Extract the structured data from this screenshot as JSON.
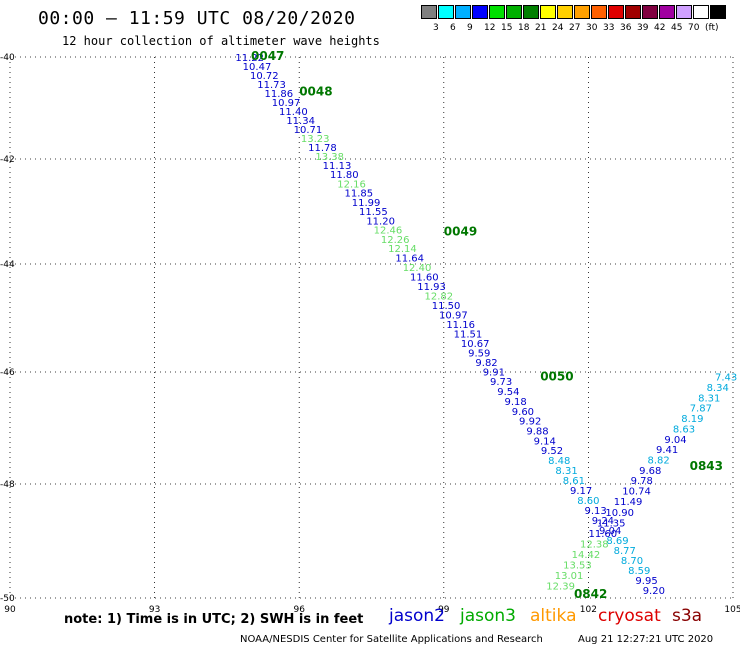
{
  "header": {
    "title": "00:00 – 11:59 UTC 08/20/2020",
    "subtitle": "12 hour collection of altimeter wave heights"
  },
  "colorbar": {
    "colors": [
      "#808080",
      "#00ffff",
      "#00b0ff",
      "#0000ff",
      "#00e000",
      "#00b000",
      "#008000",
      "#ffff00",
      "#ffd000",
      "#ffa000",
      "#ff6000",
      "#e00000",
      "#a00000",
      "#800040",
      "#a000a0",
      "#d0a0ff",
      "#ffffff",
      "#000000"
    ],
    "labels": [
      "3",
      "6",
      "9",
      "12",
      "15",
      "18",
      "21",
      "24",
      "27",
      "30",
      "33",
      "36",
      "39",
      "42",
      "45",
      "70",
      "(ft)"
    ]
  },
  "map": {
    "lon_ticks": [
      "90",
      "93",
      "96",
      "99",
      "102",
      "105"
    ],
    "lat_ticks": [
      "-40",
      "-42",
      "-44",
      "-46",
      "-48",
      "-50"
    ],
    "grid": "dotted"
  },
  "chart_data": {
    "type": "scatter",
    "xlim": [
      90,
      105
    ],
    "ylim": [
      -50,
      -40
    ],
    "tracks": [
      {
        "sat": "jason2",
        "pass_labels": [
          {
            "text": "0047",
            "lon": 95.0,
            "lat": -39.98
          },
          {
            "text": "0048",
            "lon": 96.0,
            "lat": -40.7
          },
          {
            "text": "0049",
            "lon": 99.0,
            "lat": -43.4
          },
          {
            "text": "0050",
            "lon": 101.0,
            "lat": -46.1
          }
        ],
        "points": [
          {
            "v": "11.22",
            "c": "#0000cc"
          },
          {
            "v": "10.47",
            "c": "#0000cc"
          },
          {
            "v": "10.72",
            "c": "#0000cc"
          },
          {
            "v": "11.73",
            "c": "#0000cc"
          },
          {
            "v": "11.86",
            "c": "#0000cc"
          },
          {
            "v": "10.97",
            "c": "#0000cc"
          },
          {
            "v": "11.40",
            "c": "#0000cc"
          },
          {
            "v": "11.34",
            "c": "#0000cc"
          },
          {
            "v": "10.71",
            "c": "#0000cc"
          },
          {
            "v": "13.23",
            "c": "#66dd66"
          },
          {
            "v": "11.78",
            "c": "#0000cc"
          },
          {
            "v": "13.38",
            "c": "#66dd66"
          },
          {
            "v": "11.13",
            "c": "#0000cc"
          },
          {
            "v": "11.80",
            "c": "#0000cc"
          },
          {
            "v": "12.16",
            "c": "#66dd66"
          },
          {
            "v": "11.85",
            "c": "#0000cc"
          },
          {
            "v": "11.99",
            "c": "#0000cc"
          },
          {
            "v": "11.55",
            "c": "#0000cc"
          },
          {
            "v": "11.20",
            "c": "#0000cc"
          },
          {
            "v": "12.46",
            "c": "#66dd66"
          },
          {
            "v": "12.26",
            "c": "#66dd66"
          },
          {
            "v": "12.14",
            "c": "#66dd66"
          },
          {
            "v": "11.64",
            "c": "#0000cc"
          },
          {
            "v": "12.40",
            "c": "#66dd66"
          },
          {
            "v": "11.60",
            "c": "#0000cc"
          },
          {
            "v": "11.93",
            "c": "#0000cc"
          },
          {
            "v": "12.82",
            "c": "#66dd66"
          },
          {
            "v": "11.50",
            "c": "#0000cc"
          },
          {
            "v": "10.97",
            "c": "#0000cc"
          },
          {
            "v": "11.16",
            "c": "#0000cc"
          },
          {
            "v": "11.51",
            "c": "#0000cc"
          },
          {
            "v": "10.67",
            "c": "#0000cc"
          },
          {
            "v": "9.59",
            "c": "#0000cc"
          },
          {
            "v": "9.82",
            "c": "#0000cc"
          },
          {
            "v": "9.91",
            "c": "#0000cc"
          },
          {
            "v": "9.73",
            "c": "#0000cc"
          },
          {
            "v": "9.54",
            "c": "#0000cc"
          },
          {
            "v": "9.18",
            "c": "#0000cc"
          },
          {
            "v": "9.60",
            "c": "#0000cc"
          },
          {
            "v": "9.92",
            "c": "#0000cc"
          },
          {
            "v": "9.88",
            "c": "#0000cc"
          },
          {
            "v": "9.14",
            "c": "#0000cc"
          },
          {
            "v": "9.52",
            "c": "#0000cc"
          },
          {
            "v": "8.48",
            "c": "#00aadd"
          },
          {
            "v": "8.31",
            "c": "#00aadd"
          },
          {
            "v": "8.61",
            "c": "#00aadd"
          },
          {
            "v": "9.17",
            "c": "#0000cc"
          },
          {
            "v": "8.60",
            "c": "#00aadd"
          },
          {
            "v": "9.13",
            "c": "#0000cc"
          },
          {
            "v": "9.24",
            "c": "#0000cc"
          },
          {
            "v": "9.04",
            "c": "#0000cc"
          },
          {
            "v": "8.69",
            "c": "#00aadd"
          },
          {
            "v": "8.77",
            "c": "#00aadd"
          },
          {
            "v": "8.70",
            "c": "#00aadd"
          },
          {
            "v": "8.59",
            "c": "#00aadd"
          },
          {
            "v": "9.95",
            "c": "#0000cc"
          },
          {
            "v": "9.20",
            "c": "#0000cc"
          }
        ]
      },
      {
        "sat": "jason3",
        "pass_labels": [
          {
            "text": "0842",
            "lon": 101.7,
            "lat": -49.95
          },
          {
            "text": "0843",
            "lon": 104.1,
            "lat": -47.7
          }
        ],
        "points": [
          {
            "v": "12.39",
            "c": "#66dd66"
          },
          {
            "v": "13.01",
            "c": "#66dd66"
          },
          {
            "v": "13.53",
            "c": "#66dd66"
          },
          {
            "v": "14.42",
            "c": "#66dd66"
          },
          {
            "v": "12.38",
            "c": "#66dd66"
          },
          {
            "v": "11.60",
            "c": "#0000cc"
          },
          {
            "v": "11.35",
            "c": "#0000cc"
          },
          {
            "v": "10.90",
            "c": "#0000cc"
          },
          {
            "v": "11.49",
            "c": "#0000cc"
          },
          {
            "v": "10.74",
            "c": "#0000cc"
          },
          {
            "v": "9.78",
            "c": "#0000cc"
          },
          {
            "v": "9.68",
            "c": "#0000cc"
          },
          {
            "v": "8.82",
            "c": "#00aadd"
          },
          {
            "v": "9.41",
            "c": "#0000cc"
          },
          {
            "v": "9.04",
            "c": "#0000cc"
          },
          {
            "v": "8.63",
            "c": "#00aadd"
          },
          {
            "v": "8.19",
            "c": "#00aadd"
          },
          {
            "v": "7.87",
            "c": "#00aadd"
          },
          {
            "v": "8.31",
            "c": "#00aadd"
          },
          {
            "v": "8.34",
            "c": "#00aadd"
          },
          {
            "v": "7.43",
            "c": "#00aadd"
          }
        ]
      }
    ]
  },
  "footer": {
    "note": "note: 1) Time is in UTC; 2) SWH is in feet",
    "satellites": [
      {
        "name": "jason2",
        "color": "#0000cc"
      },
      {
        "name": "jason3",
        "color": "#00aa00"
      },
      {
        "name": "altika",
        "color": "#ff9900"
      },
      {
        "name": "cryosat",
        "color": "#dd0000"
      },
      {
        "name": "s3a",
        "color": "#880000"
      }
    ],
    "credit": "NOAA/NESDIS Center for Satellite Applications and Research",
    "timestamp": "Aug 21 12:27:21 UTC 2020"
  }
}
